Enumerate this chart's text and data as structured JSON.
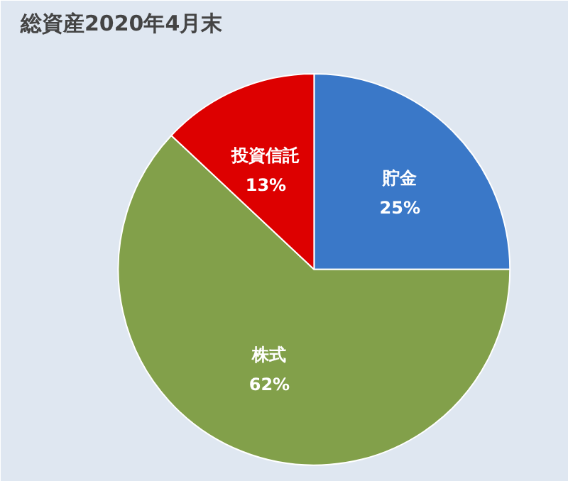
{
  "chart_data": {
    "type": "pie",
    "title": "総資産2020年4月末",
    "categories": [
      "貯金",
      "株式",
      "投資信託"
    ],
    "values": [
      25,
      62,
      13
    ],
    "colors": [
      "#3a78c8",
      "#82a04a",
      "#dd0000"
    ],
    "value_labels": [
      "25%",
      "62%",
      "13%"
    ]
  }
}
